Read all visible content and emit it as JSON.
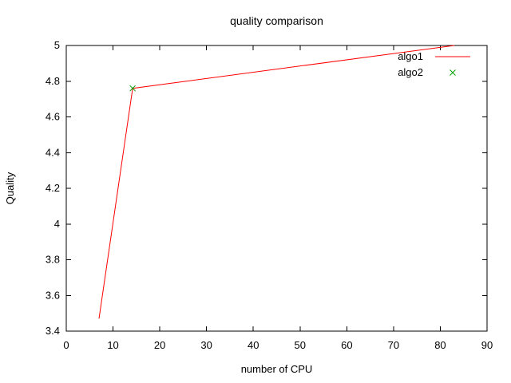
{
  "chart_data": {
    "type": "line",
    "title": "quality comparison",
    "xlabel": "number of CPU",
    "ylabel": "Quality",
    "xlim": [
      0,
      90
    ],
    "ylim": [
      3.4,
      5
    ],
    "xticks": [
      "0",
      "10",
      "20",
      "30",
      "40",
      "50",
      "60",
      "70",
      "80",
      "90"
    ],
    "yticks": [
      "3.4",
      "3.6",
      "3.8",
      "4",
      "4.2",
      "4.4",
      "4.6",
      "4.8",
      "5"
    ],
    "grid": false,
    "legend_position": "top-right-inside",
    "series": [
      {
        "name": "algo1",
        "kind": "line",
        "color": "#ff0000",
        "points": [
          [
            7,
            3.47
          ],
          [
            14.2,
            4.76
          ],
          [
            83,
            5.0
          ]
        ]
      },
      {
        "name": "algo2",
        "kind": "scatter",
        "marker": "x",
        "color": "#00a000",
        "points": [
          [
            14.2,
            4.76
          ]
        ]
      }
    ]
  },
  "colors": {
    "background": "#ffffff",
    "axis": "#000000",
    "text": "#000000"
  }
}
